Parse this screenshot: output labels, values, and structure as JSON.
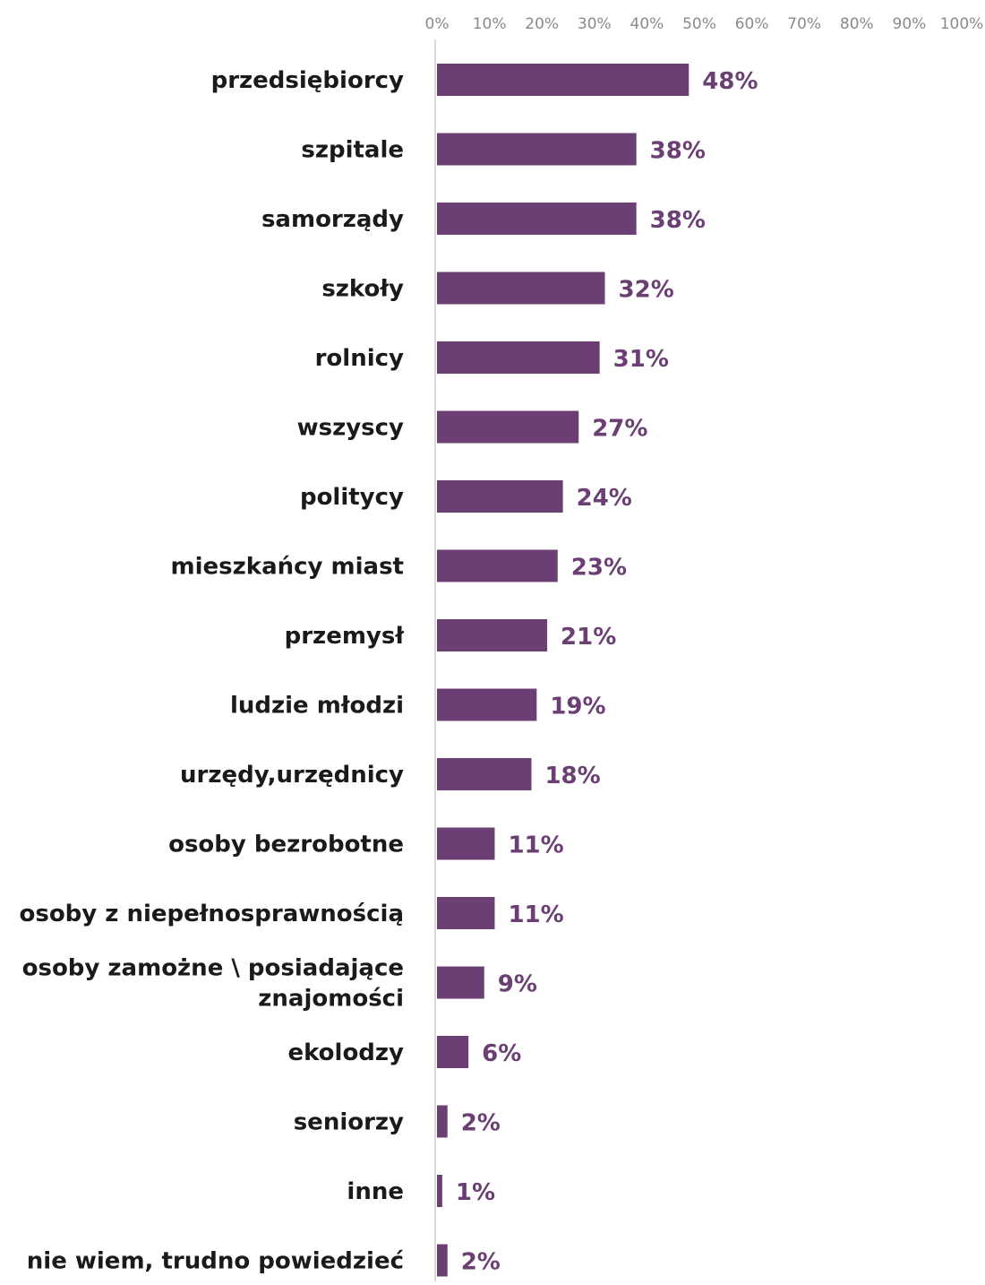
{
  "chart_data": {
    "type": "bar",
    "orientation": "horizontal",
    "categories": [
      "przedsiębiorcy",
      "szpitale",
      "samorządy",
      "szkoły",
      "rolnicy",
      "wszyscy",
      "politycy",
      "mieszkańcy miast",
      "przemysł",
      "ludzie młodzi",
      "urzędy,urzędnicy",
      "osoby bezrobotne",
      "osoby z niepełnosprawnością",
      "osoby zamożne \\ posiadające znajomości",
      "ekolodzy",
      "seniorzy",
      "inne",
      "nie wiem, trudno powiedzieć"
    ],
    "values": [
      48,
      38,
      38,
      32,
      31,
      27,
      24,
      23,
      21,
      19,
      18,
      11,
      11,
      9,
      6,
      2,
      1,
      2
    ],
    "value_labels": [
      "48%",
      "38%",
      "38%",
      "32%",
      "31%",
      "27%",
      "24%",
      "23%",
      "21%",
      "19%",
      "18%",
      "11%",
      "11%",
      "9%",
      "6%",
      "2%",
      "1%",
      "2%"
    ],
    "xlim": [
      0,
      100
    ],
    "x_ticks": [
      "0%",
      "10%",
      "20%",
      "30%",
      "40%",
      "50%",
      "60%",
      "70%",
      "80%",
      "90%",
      "100%"
    ],
    "x_axis_position": "top",
    "grid": false,
    "bar_color": "#6b3f73",
    "label_color": "#6b3f73"
  }
}
